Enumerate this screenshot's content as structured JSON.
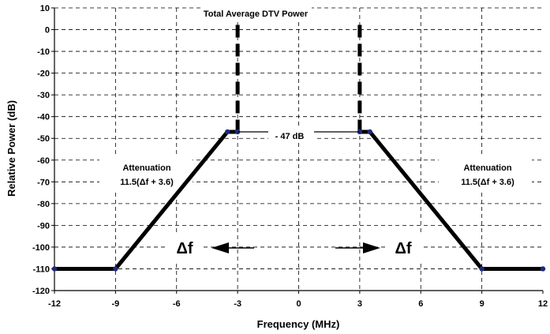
{
  "chart_data": {
    "type": "line",
    "xlabel": "Frequency  (MHz)",
    "ylabel": "Relative Power  (dB)",
    "xlim": [
      -12,
      12
    ],
    "ylim": [
      -120,
      10
    ],
    "x_ticks": [
      -12,
      -9,
      -6,
      -3,
      0,
      3,
      6,
      9,
      12
    ],
    "y_ticks": [
      10,
      0,
      -10,
      -20,
      -30,
      -40,
      -50,
      -60,
      -70,
      -80,
      -90,
      -100,
      -110,
      -120
    ],
    "grid": true,
    "series": [
      {
        "values_xy": [
          [
            -12,
            -110
          ],
          [
            -9,
            -110
          ],
          [
            -3.5,
            -47
          ],
          [
            -3,
            -47
          ]
        ],
        "style": "solid"
      },
      {
        "values_xy": [
          [
            3,
            -47
          ],
          [
            3.5,
            -47
          ],
          [
            9,
            -110
          ],
          [
            12,
            -110
          ]
        ],
        "style": "solid"
      }
    ],
    "vertical_markers": [
      {
        "x": -3,
        "y_from": 0,
        "y_to": -47,
        "style": "dashed"
      },
      {
        "x": 3,
        "y_from": 0,
        "y_to": -47,
        "style": "dashed"
      }
    ],
    "annotations": {
      "top_label": "Total Average DTV  Power",
      "level_label": "- 47 dB",
      "atten_title_left": "Attenuation",
      "atten_formula_left": "11.5(Δf + 3.6)",
      "atten_title_right": "Attenuation",
      "atten_formula_right": "11.5(Δf + 3.6)",
      "delta_left": "Δf",
      "delta_right": "Δf"
    },
    "colors": {
      "mask_line": "#000000",
      "marker": "#1f2a7a",
      "grid": "#000000",
      "background": "#ffffff"
    }
  }
}
